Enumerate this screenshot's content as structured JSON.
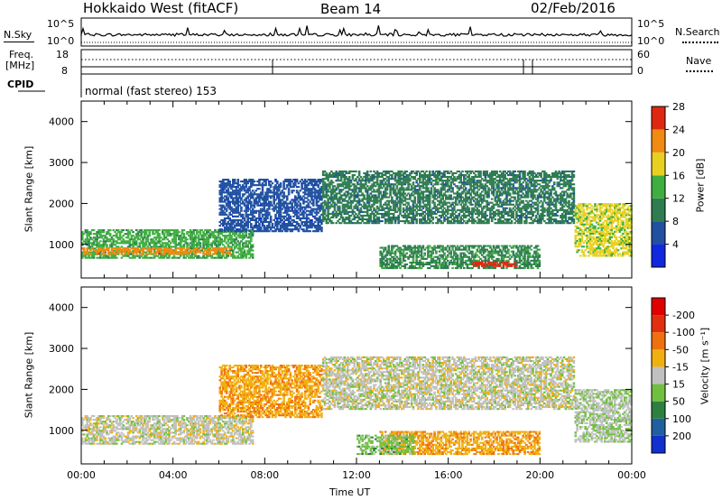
{
  "header": {
    "radar": "Hokkaido West (fitACF)",
    "beam": "Beam 14",
    "date": "02/Feb/2016"
  },
  "top_strip": {
    "nsky_label": "N.Sky",
    "nsky_tick_top": "10^5",
    "nsky_tick_bottom": "10^0",
    "nsearch_label": "N.Search",
    "nsearch_tick_top": "10^5",
    "nsearch_tick_bottom": "10^0",
    "freq_label_1": "Freq.",
    "freq_label_2": "[MHz]",
    "freq_tick_top": "18",
    "freq_tick_bottom": "8",
    "nave_label": "Nave",
    "nave_tick_top": "60",
    "nave_tick_bottom": "0",
    "cpid_label": "CPID",
    "cpid_text": "normal (fast stereo) 153"
  },
  "panels": {
    "ylabel": "Slant Range [km]",
    "xlabel": "Time UT",
    "yticks": [
      "1000",
      "2000",
      "3000",
      "4000"
    ],
    "xticks": [
      "00:00",
      "04:00",
      "08:00",
      "12:00",
      "16:00",
      "20:00",
      "00:00"
    ]
  },
  "power_bar": {
    "label": "Power [dB]",
    "ticks": [
      "4",
      "8",
      "12",
      "16",
      "20",
      "24",
      "28"
    ],
    "colors": [
      "#1028e0",
      "#2050a0",
      "#2e7d50",
      "#3fae3f",
      "#e8d020",
      "#f08a10",
      "#e02810"
    ]
  },
  "velocity_bar": {
    "label": "Velocity [m s⁻¹]",
    "ticks": [
      "200",
      "100",
      "50",
      "15",
      "-15",
      "-50",
      "-100",
      "-200"
    ],
    "colors": [
      "#1030d0",
      "#2060a0",
      "#2e8040",
      "#70c040",
      "#c0c0c0",
      "#f0b010",
      "#f07010",
      "#e03010",
      "#e00000"
    ]
  },
  "chart_data": [
    {
      "type": "heatmap",
      "title": "Power [dB]",
      "xlabel": "Time UT",
      "ylabel": "Slant Range [km]",
      "xlim": [
        "00:00",
        "24:00"
      ],
      "ylim": [
        180,
        4500
      ],
      "zlim": [
        0,
        30
      ],
      "regions": [
        {
          "time": [
            "00:00",
            "07:30"
          ],
          "range_km": [
            650,
            1350
          ],
          "power_db": 14
        },
        {
          "time": [
            "00:00",
            "06:30"
          ],
          "range_km": [
            750,
            950
          ],
          "power_db": 24
        },
        {
          "time": [
            "06:00",
            "10:30"
          ],
          "range_km": [
            1300,
            2600
          ],
          "power_db": 6
        },
        {
          "time": [
            "10:30",
            "21:30"
          ],
          "range_km": [
            1500,
            2800
          ],
          "power_db": 10
        },
        {
          "time": [
            "13:00",
            "20:00"
          ],
          "range_km": [
            400,
            1000
          ],
          "power_db": 12
        },
        {
          "time": [
            "17:00",
            "19:00"
          ],
          "range_km": [
            450,
            600
          ],
          "power_db": 28
        },
        {
          "time": [
            "21:30",
            "24:00"
          ],
          "range_km": [
            700,
            2000
          ],
          "power_db": 18
        }
      ]
    },
    {
      "type": "heatmap",
      "title": "Velocity [m s⁻¹]",
      "xlabel": "Time UT",
      "ylabel": "Slant Range [km]",
      "xlim": [
        "00:00",
        "24:00"
      ],
      "ylim": [
        180,
        4500
      ],
      "zlim": [
        -200,
        200
      ],
      "regions": [
        {
          "time": [
            "00:00",
            "07:30"
          ],
          "range_km": [
            650,
            1350
          ],
          "velocity": 0
        },
        {
          "time": [
            "06:00",
            "10:30"
          ],
          "range_km": [
            1300,
            2600
          ],
          "velocity": -40
        },
        {
          "time": [
            "10:30",
            "21:30"
          ],
          "range_km": [
            1500,
            2800
          ],
          "velocity": 0
        },
        {
          "time": [
            "13:00",
            "20:00"
          ],
          "range_km": [
            400,
            1000
          ],
          "velocity": -40
        },
        {
          "time": [
            "12:00",
            "14:30"
          ],
          "range_km": [
            400,
            900
          ],
          "velocity": 30
        },
        {
          "time": [
            "21:30",
            "24:00"
          ],
          "range_km": [
            700,
            2000
          ],
          "velocity": 10
        }
      ]
    }
  ]
}
